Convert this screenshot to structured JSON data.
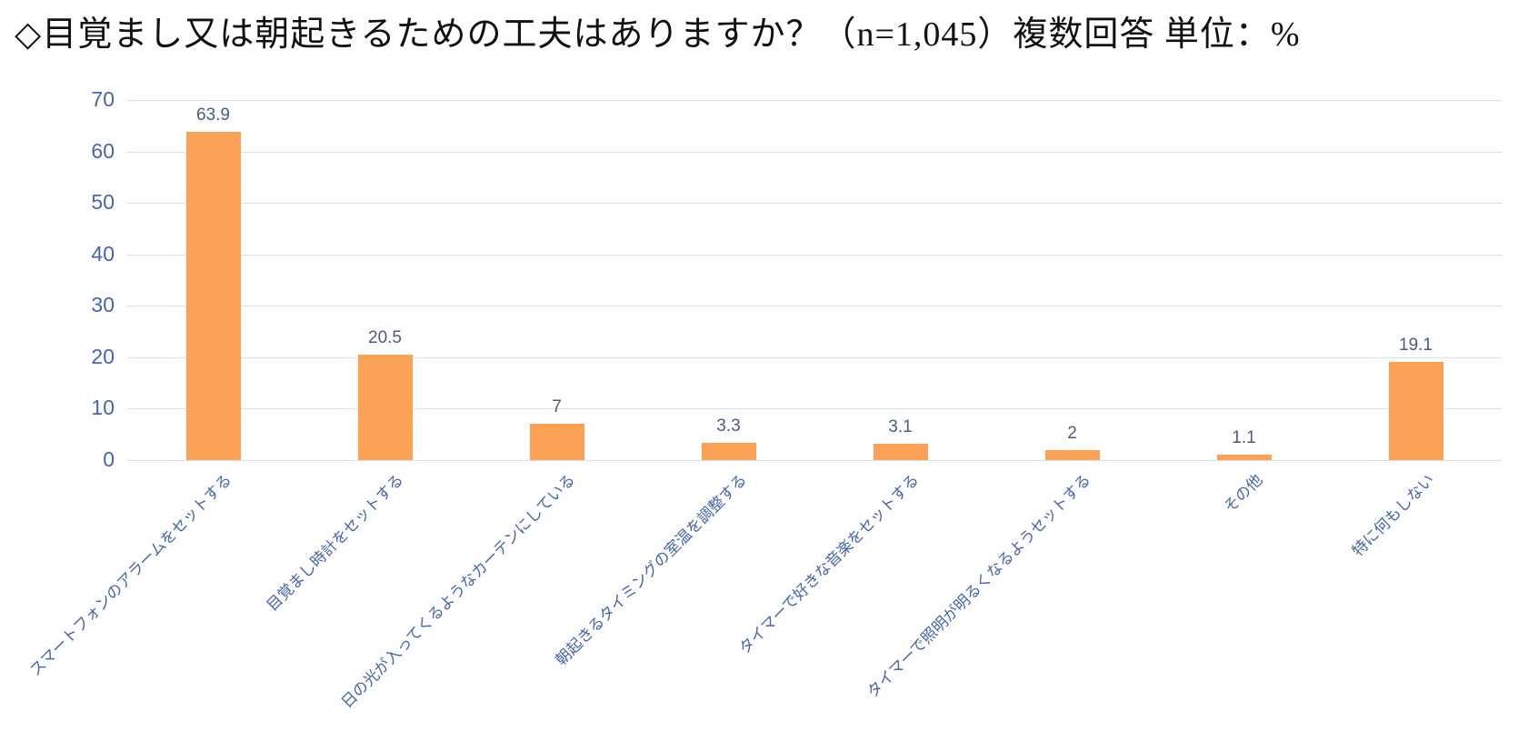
{
  "title": "◇目覚まし又は朝起きるための工夫はありますか？（n=1,045）複数回答 単位：%",
  "chart_data": {
    "type": "bar",
    "title": "◇目覚まし又は朝起きるための工夫はありますか？（n=1,045）複数回答 単位：%",
    "sample_size_note": "n=1,045",
    "answer_type_note": "複数回答",
    "unit_note": "単位：%",
    "categories": [
      "スマートフォンのアラームをセットする",
      "目覚まし時計をセットする",
      "日の光が入ってくるようなカーテンにしている",
      "朝起きるタイミングの室温を調整する",
      "タイマーで好きな音楽をセットする",
      "タイマーで照明が明るくなるようセットする",
      "その他",
      "特に何もしない"
    ],
    "values": [
      63.9,
      20.5,
      7,
      3.3,
      3.1,
      2,
      1.1,
      19.1
    ],
    "value_labels": [
      "63.9",
      "20.5",
      "7",
      "3.3",
      "3.1",
      "2",
      "1.1",
      "19.1"
    ],
    "xlabel": "",
    "ylabel": "",
    "ylim": [
      0,
      70
    ],
    "y_ticks": [
      0,
      10,
      20,
      30,
      40,
      50,
      60,
      70
    ],
    "grid": true,
    "legend_position": "none",
    "bar_color": "#FBA257",
    "axis_label_color": "#4665AC",
    "value_label_color": "#4A5B84",
    "gridline_color": "#D9DEF0",
    "category_label_rotation_deg": 45
  }
}
